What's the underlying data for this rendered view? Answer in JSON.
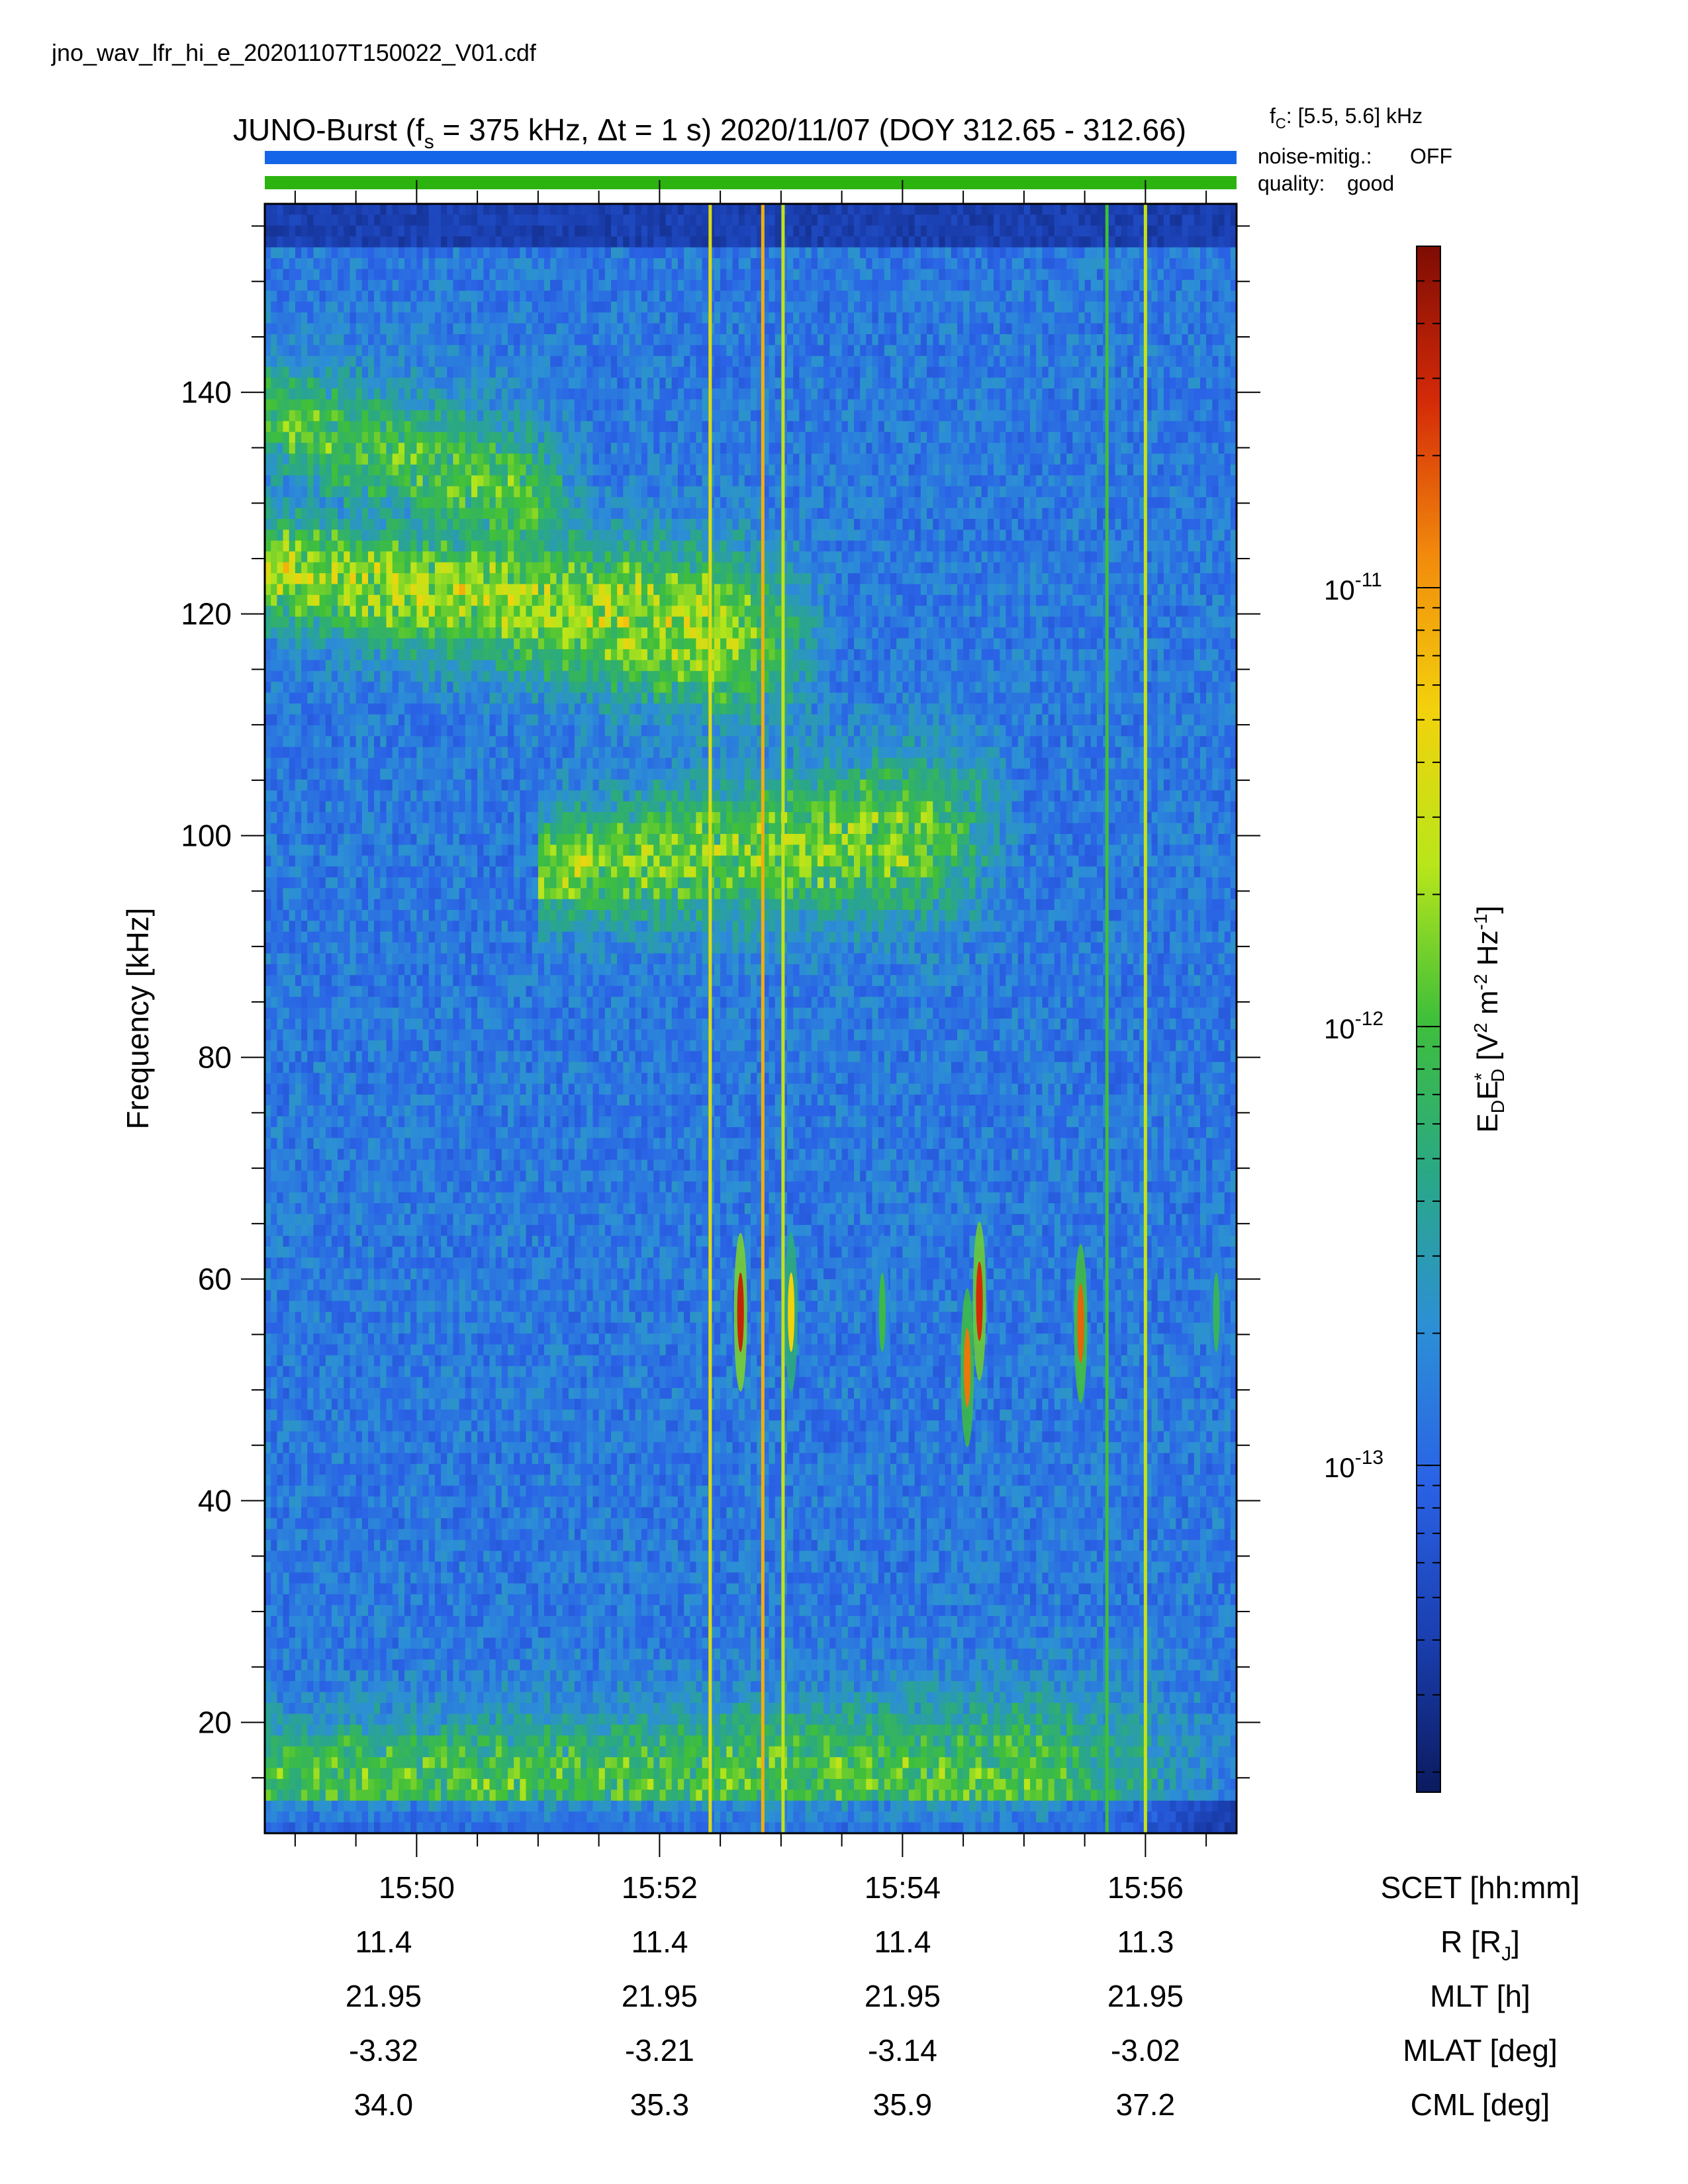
{
  "file_name": "jno_wav_lfr_hi_e_20201107T150022_V01.cdf",
  "title": {
    "prefix": "JUNO-Burst (f",
    "fs_sub": "s",
    "mid": " = 375 kHz, Δt = 1 s)  2020/11/07 (DOY 312.65 - 312.66)",
    "fc_main": "f",
    "fc_sub": "C",
    "fc_rest": ": [5.5, 5.6] kHz"
  },
  "status": {
    "noise_label": "noise-mitig.:",
    "noise_value": "OFF",
    "noise_color": "#1565e8",
    "quality_label": "quality:",
    "quality_value": "good",
    "quality_color": "#2db30f"
  },
  "colorbar": {
    "label_main": "E",
    "label_sub1": "D",
    "label_mid": "E",
    "label_star": "*",
    "label_sub2": "D",
    "label_units_open": "[V",
    "label_sup1": "2",
    "label_m": " m",
    "label_sup2": "-2",
    "label_hz": " Hz",
    "label_sup3": "-1",
    "label_close": "]",
    "scale": "log",
    "min": 1.8e-14,
    "max": 6e-11,
    "ticks": [
      {
        "base": "10",
        "exp": "-11",
        "value": 1e-11
      },
      {
        "base": "10",
        "exp": "-12",
        "value": 1e-12
      },
      {
        "base": "10",
        "exp": "-13",
        "value": 1e-13
      }
    ],
    "colormap": [
      "#0b1a5e",
      "#1a3fb0",
      "#2a62e6",
      "#2c8fd6",
      "#2aa886",
      "#3fbf3a",
      "#b8e61a",
      "#f2d20c",
      "#f28a0c",
      "#d42a08",
      "#7e0c04"
    ]
  },
  "chart_data": {
    "type": "heatmap",
    "xlabel": "SCET [hh:mm]",
    "ylabel": "Frequency [kHz]",
    "ylim": [
      10,
      157
    ],
    "x_range_minutes": [
      "15:48:45",
      "15:56:45"
    ],
    "x_ticks": [
      "15:50",
      "15:52",
      "15:54",
      "15:56"
    ],
    "y_ticks": [
      20,
      40,
      60,
      80,
      100,
      120,
      140
    ],
    "ephemeris": [
      {
        "label": "R [R",
        "sub": "J",
        "close": "]",
        "values": [
          "11.4",
          "11.4",
          "11.4",
          "11.3"
        ]
      },
      {
        "label": "MLT [h]",
        "sub": "",
        "close": "",
        "values": [
          "21.95",
          "21.95",
          "21.95",
          "21.95"
        ]
      },
      {
        "label": "MLAT [deg]",
        "sub": "",
        "close": "",
        "values": [
          "-3.32",
          "-3.21",
          "-3.14",
          "-3.02"
        ]
      },
      {
        "label": "CML [deg]",
        "sub": "",
        "close": "",
        "values": [
          "34.0",
          "35.3",
          "35.9",
          "37.2"
        ]
      }
    ],
    "features": {
      "bands": [
        {
          "f_start": 124,
          "f_end": 117,
          "t_start": "15:48:45",
          "t_end": "15:53:30",
          "level": 0.42
        },
        {
          "f_start": 138,
          "f_end": 128,
          "t_start": "15:48:45",
          "t_end": "15:51:30",
          "level": 0.3
        },
        {
          "f_start": 97,
          "f_end": 101,
          "t_start": "15:51:00",
          "t_end": "15:55:00",
          "level": 0.36
        },
        {
          "f_start": 15,
          "f_end": 15,
          "t_start": "15:48:45",
          "t_end": "15:56:45",
          "level": 0.3
        }
      ],
      "vertical_lines": [
        {
          "t": "15:52:25",
          "level": 0.66
        },
        {
          "t": "15:52:51",
          "level": 0.75
        },
        {
          "t": "15:53:01",
          "level": 0.62
        },
        {
          "t": "15:55:41",
          "level": 0.5
        },
        {
          "t": "15:56:00",
          "level": 0.62
        }
      ],
      "bursts": [
        {
          "t": "15:52:40",
          "f": 57,
          "level": 0.92
        },
        {
          "t": "15:53:05",
          "f": 57,
          "level": 0.7
        },
        {
          "t": "15:54:38",
          "f": 58,
          "level": 0.9
        },
        {
          "t": "15:54:32",
          "f": 52,
          "level": 0.82
        },
        {
          "t": "15:55:28",
          "f": 56,
          "level": 0.84
        },
        {
          "t": "15:53:50",
          "f": 57,
          "level": 0.48
        },
        {
          "t": "15:56:35",
          "f": 57,
          "level": 0.45
        }
      ]
    }
  }
}
